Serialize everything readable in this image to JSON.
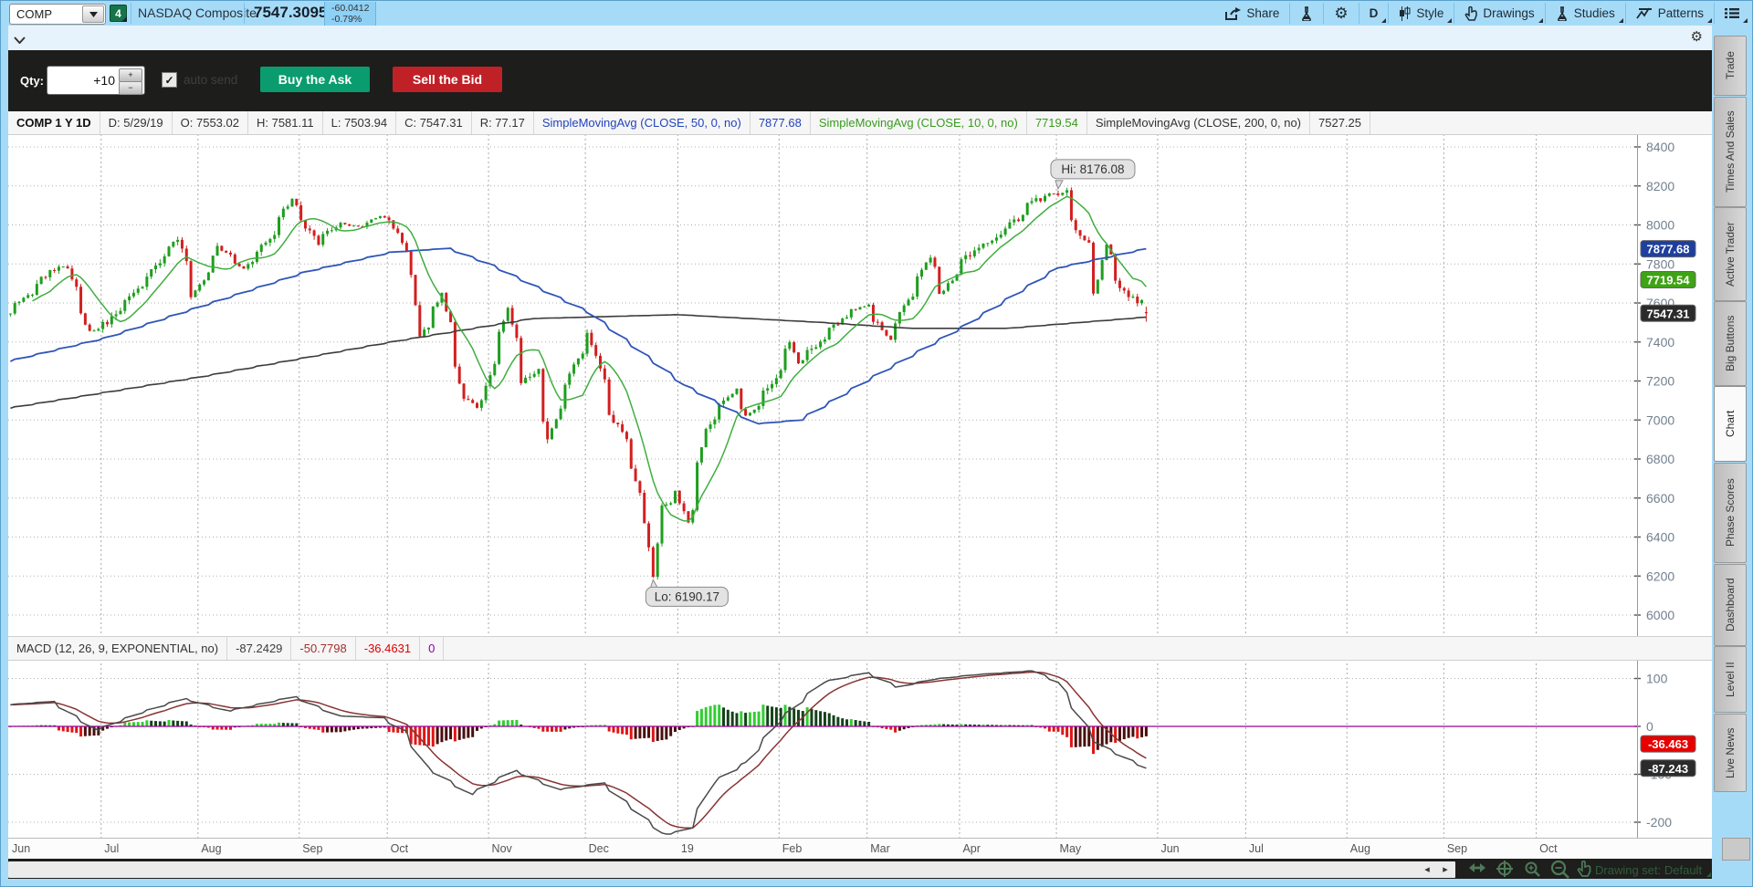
{
  "topbar": {
    "symbol": "COMP",
    "link_group": "4",
    "symbol_name": "NASDAQ Composite",
    "last_price": "7547.3095",
    "change": "-60.0412",
    "change_percent": "-0.79%",
    "share_label": "Share",
    "timeframe_label": "D",
    "style_label": "Style",
    "drawings_label": "Drawings",
    "studies_label": "Studies",
    "patterns_label": "Patterns"
  },
  "order_bar": {
    "qty_label": "Qty:",
    "qty_value": "+10",
    "auto_send_label": "auto send",
    "check_glyph": "✓",
    "buy_button": "Buy the Ask",
    "sell_button": "Sell the Bid"
  },
  "chart_header": {
    "title": "COMP 1 Y 1D",
    "date": "D: 5/29/19",
    "open": "O: 7553.02",
    "high": "H: 7581.11",
    "low": "L: 7503.94",
    "close": "C: 7547.31",
    "range": "R: 77.17",
    "sma50_label": "SimpleMovingAvg (CLOSE, 50, 0, no)",
    "sma50_value": "7877.68",
    "sma10_label": "SimpleMovingAvg (CLOSE, 10, 0, no)",
    "sma10_value": "7719.54",
    "sma200_label": "SimpleMovingAvg (CLOSE, 200, 0, no)",
    "sma200_value": "7527.25"
  },
  "macd_header": {
    "label": "MACD (12, 26, 9, EXPONENTIAL, no)",
    "macd_value": "-87.2429",
    "signal_value": "-50.7798",
    "hist_value": "-36.4631",
    "zero_value": "0"
  },
  "bottom_bar": {
    "drawing_set": "Drawing set: Default",
    "scroll_left": "◂",
    "scroll_right": "▸"
  },
  "side_tabs": [
    {
      "label": "Trade",
      "active": false
    },
    {
      "label": "Times And Sales",
      "active": false
    },
    {
      "label": "Active Trader",
      "active": false
    },
    {
      "label": "Big Buttons",
      "active": false
    },
    {
      "label": "Chart",
      "active": true
    },
    {
      "label": "Phase Scores",
      "active": false
    },
    {
      "label": "Dashboard",
      "active": false
    },
    {
      "label": "Level II",
      "active": false
    },
    {
      "label": "Live News",
      "active": false
    }
  ],
  "chart_data": {
    "type": "candlestick",
    "symbol": "COMP",
    "title": "COMP 1 Y 1D",
    "date_start": "2018-06-01",
    "date_end_data": "2019-05-29",
    "date_end_axis": "2019-10-31",
    "month_labels": [
      "Jun",
      "Jul",
      "Aug",
      "Sep",
      "Oct",
      "Nov",
      "Dec",
      "19",
      "Feb",
      "Mar",
      "Apr",
      "May",
      "Jun",
      "Jul",
      "Aug",
      "Sep",
      "Oct"
    ],
    "y_axis_labels": [
      8400,
      8200,
      8000,
      7800,
      7600,
      7400,
      7200,
      7000,
      6800,
      6600,
      6400,
      6200,
      6000
    ],
    "hi_annotation": {
      "label": "Hi: 8176.08",
      "date": "2019-05-01",
      "value": 8176.08
    },
    "lo_annotation": {
      "label": "Lo: 6190.17",
      "date": "2018-12-24",
      "value": 6190.17
    },
    "last_candle": {
      "date": "2019-05-29",
      "open": 7553.02,
      "high": 7581.11,
      "low": 7503.94,
      "close": 7547.31
    },
    "price_badges": [
      {
        "text": "7877.68",
        "value": 7877.68,
        "color": "#1e3f9e"
      },
      {
        "text": "7719.54",
        "value": 7719.54,
        "color": "#3fa315"
      },
      {
        "text": "7547.31",
        "value": 7547.31,
        "color": "#2b2b2b"
      }
    ],
    "close_path": [
      [
        "2018-06-01",
        7554
      ],
      [
        "2018-06-08",
        7646
      ],
      [
        "2018-06-14",
        7761
      ],
      [
        "2018-06-20",
        7781
      ],
      [
        "2018-06-27",
        7445
      ],
      [
        "2018-07-03",
        7502
      ],
      [
        "2018-07-13",
        7688
      ],
      [
        "2018-07-25",
        7932
      ],
      [
        "2018-07-30",
        7630
      ],
      [
        "2018-08-07",
        7884
      ],
      [
        "2018-08-15",
        7774
      ],
      [
        "2018-08-24",
        7946
      ],
      [
        "2018-08-30",
        8133
      ],
      [
        "2018-09-07",
        7902
      ],
      [
        "2018-09-14",
        8010
      ],
      [
        "2018-09-21",
        7987
      ],
      [
        "2018-09-27",
        8041
      ],
      [
        "2018-10-01",
        8037
      ],
      [
        "2018-10-08",
        7736
      ],
      [
        "2018-10-10",
        7422
      ],
      [
        "2018-10-17",
        7643
      ],
      [
        "2018-10-24",
        7108
      ],
      [
        "2018-10-29",
        7050
      ],
      [
        "2018-11-07",
        7571
      ],
      [
        "2018-11-12",
        7200
      ],
      [
        "2018-11-16",
        7248
      ],
      [
        "2018-11-20",
        6909
      ],
      [
        "2018-11-28",
        7291
      ],
      [
        "2018-12-03",
        7442
      ],
      [
        "2018-12-10",
        7021
      ],
      [
        "2018-12-14",
        6911
      ],
      [
        "2018-12-19",
        6637
      ],
      [
        "2018-12-21",
        6333
      ],
      [
        "2018-12-24",
        6193
      ],
      [
        "2018-12-26",
        6554
      ],
      [
        "2018-12-31",
        6635
      ],
      [
        "2019-01-03",
        6464
      ],
      [
        "2019-01-09",
        6957
      ],
      [
        "2019-01-18",
        7157
      ],
      [
        "2019-01-22",
        7020
      ],
      [
        "2019-01-30",
        7183
      ],
      [
        "2019-02-05",
        7402
      ],
      [
        "2019-02-07",
        7288
      ],
      [
        "2019-02-22",
        7527
      ],
      [
        "2019-03-01",
        7595
      ],
      [
        "2019-03-08",
        7408
      ],
      [
        "2019-03-21",
        7839
      ],
      [
        "2019-03-25",
        7637
      ],
      [
        "2019-04-01",
        7829
      ],
      [
        "2019-04-16",
        8000
      ],
      [
        "2019-04-23",
        8120
      ],
      [
        "2019-04-29",
        8161
      ],
      [
        "2019-05-03",
        8164
      ],
      [
        "2019-05-07",
        7963
      ],
      [
        "2019-05-10",
        7917
      ],
      [
        "2019-05-13",
        7647
      ],
      [
        "2019-05-16",
        7898
      ],
      [
        "2019-05-20",
        7702
      ],
      [
        "2019-05-23",
        7628
      ],
      [
        "2019-05-28",
        7607
      ],
      [
        "2019-05-29",
        7547.31
      ]
    ],
    "sma50_path": [
      [
        "2018-06-01",
        7300
      ],
      [
        "2018-07-02",
        7420
      ],
      [
        "2018-08-01",
        7580
      ],
      [
        "2018-09-04",
        7760
      ],
      [
        "2018-10-01",
        7860
      ],
      [
        "2018-10-19",
        7880
      ],
      [
        "2018-11-01",
        7800
      ],
      [
        "2018-12-03",
        7550
      ],
      [
        "2019-01-02",
        7180
      ],
      [
        "2019-01-25",
        6980
      ],
      [
        "2019-02-08",
        7000
      ],
      [
        "2019-03-01",
        7200
      ],
      [
        "2019-04-01",
        7480
      ],
      [
        "2019-05-01",
        7780
      ],
      [
        "2019-05-29",
        7877.68
      ]
    ],
    "sma200_path": [
      [
        "2018-06-01",
        7060
      ],
      [
        "2018-08-01",
        7220
      ],
      [
        "2018-10-01",
        7400
      ],
      [
        "2018-11-15",
        7520
      ],
      [
        "2018-12-31",
        7540
      ],
      [
        "2019-02-15",
        7500
      ],
      [
        "2019-03-15",
        7470
      ],
      [
        "2019-04-15",
        7470
      ],
      [
        "2019-05-29",
        7527.25
      ]
    ],
    "macd": {
      "axis_labels": [
        100,
        0,
        -100,
        -200
      ],
      "line_end": -87.2429,
      "signal_end": -50.7798,
      "hist_end": -36.4631,
      "badges": [
        {
          "text": "-36.463",
          "value": -36.463,
          "color": "#e60000"
        },
        {
          "text": "-87.243",
          "value": -87.243,
          "color": "#2b2b2b"
        }
      ],
      "path": [
        [
          "2018-06-01",
          45
        ],
        [
          "2018-06-15",
          52
        ],
        [
          "2018-06-29",
          -8
        ],
        [
          "2018-07-13",
          28
        ],
        [
          "2018-07-27",
          58
        ],
        [
          "2018-08-10",
          32
        ],
        [
          "2018-08-31",
          62
        ],
        [
          "2018-09-14",
          22
        ],
        [
          "2018-09-28",
          18
        ],
        [
          "2018-10-05",
          -10
        ],
        [
          "2018-10-12",
          -85
        ],
        [
          "2018-10-26",
          -142
        ],
        [
          "2018-11-09",
          -92
        ],
        [
          "2018-11-23",
          -132
        ],
        [
          "2018-12-07",
          -118
        ],
        [
          "2018-12-21",
          -195
        ],
        [
          "2018-12-27",
          -228
        ],
        [
          "2019-01-04",
          -212
        ],
        [
          "2019-01-11",
          -118
        ],
        [
          "2019-01-22",
          -75
        ],
        [
          "2019-02-01",
          10
        ],
        [
          "2019-02-15",
          92
        ],
        [
          "2019-03-01",
          112
        ],
        [
          "2019-03-11",
          82
        ],
        [
          "2019-03-22",
          98
        ],
        [
          "2019-04-05",
          108
        ],
        [
          "2019-04-23",
          116
        ],
        [
          "2019-05-01",
          92
        ],
        [
          "2019-05-07",
          28
        ],
        [
          "2019-05-13",
          -32
        ],
        [
          "2019-05-17",
          -48
        ],
        [
          "2019-05-23",
          -68
        ],
        [
          "2019-05-29",
          -87.2429
        ]
      ]
    },
    "colors": {
      "candle_up": "#1e9e1e",
      "candle_down": "#d21f1f",
      "sma10": "#3fae3f",
      "sma50": "#2f55b8",
      "sma200": "#3c3c3c",
      "macd_line": "#4a4a4a",
      "signal_line": "#8a3434",
      "hist_up": "#33cc33",
      "hist_up_dark": "#14421a",
      "hist_down": "#e01616",
      "hist_down_dark": "#4a0e0e",
      "zero_line": "#990099",
      "grid": "#b0b0b0",
      "axis_text": "#72808f"
    }
  }
}
